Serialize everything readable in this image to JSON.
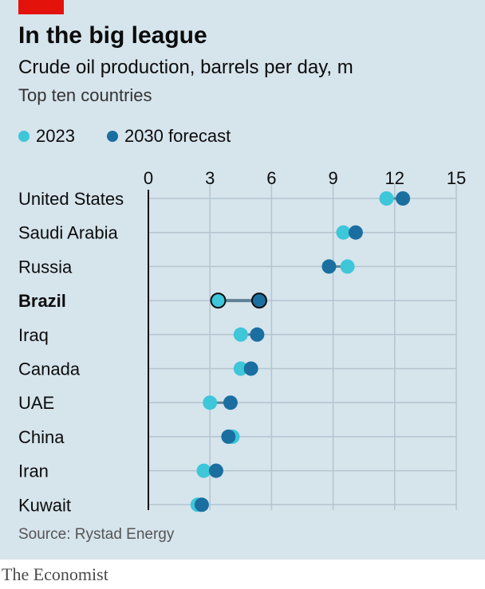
{
  "title": "In the big league",
  "subtitle": "Crude oil production, barrels per day, m",
  "note": "Top ten countries",
  "legend": {
    "series_2023": "2023",
    "series_2030": "2030 forecast"
  },
  "colors": {
    "c2023": "#3ec6d9",
    "c2030": "#1a6fa0",
    "background": "#d6e4ec",
    "brand_red": "#e3120b"
  },
  "source": "Source: Rystad Energy",
  "brand": "The Economist",
  "chart_data": {
    "type": "dot",
    "title": "In the big league",
    "xlim": [
      0,
      15
    ],
    "xticks": [
      0,
      3,
      6,
      9,
      12,
      15
    ],
    "grid": true,
    "legend_position": "top-left",
    "highlight": "Brazil",
    "categories": [
      "United States",
      "Saudi Arabia",
      "Russia",
      "Brazil",
      "Iraq",
      "Canada",
      "UAE",
      "China",
      "Iran",
      "Kuwait"
    ],
    "series": [
      {
        "name": "2023",
        "values": [
          11.6,
          9.5,
          9.7,
          3.4,
          4.5,
          4.5,
          3.0,
          4.1,
          2.7,
          2.4
        ]
      },
      {
        "name": "2030 forecast",
        "values": [
          12.4,
          10.1,
          8.8,
          5.4,
          5.3,
          5.0,
          4.0,
          3.9,
          3.3,
          2.6
        ]
      }
    ]
  }
}
